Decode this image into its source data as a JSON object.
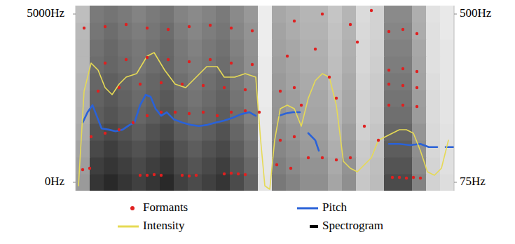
{
  "chart_data": {
    "type": "spectrogram",
    "legend": "bottom",
    "tick_labels": "y",
    "xlim": [
      0,
      27
    ],
    "ylim": [
      -250,
      5250
    ],
    "yticks": [
      {
        "value": 0,
        "label": "0Hz"
      },
      {
        "value": 5000,
        "label": "5000Hz"
      }
    ],
    "y2lim": [
      53.75,
      521.25
    ],
    "y2ticks": [
      {
        "value": 75,
        "label": "75Hz"
      },
      {
        "value": 500,
        "label": "500Hz"
      }
    ],
    "spectrogram": {
      "name": "Spectrogram",
      "color": "#000000",
      "zlim": [
        0,
        100
      ],
      "y_edges": [
        -250,
        250,
        750,
        1250,
        1750,
        2250,
        2750,
        3250,
        3750,
        4250,
        4750,
        5250
      ],
      "cells": [
        [
          45,
          90,
          95,
          90,
          85,
          90,
          95,
          85,
          80,
          85,
          90,
          80,
          70,
          12,
          60,
          55,
          50,
          50,
          40,
          50,
          25,
          30,
          80,
          80,
          55,
          20,
          15
        ],
        [
          43,
          86,
          90,
          86,
          81,
          86,
          90,
          81,
          76,
          81,
          86,
          76,
          67,
          11,
          57,
          52,
          48,
          48,
          38,
          48,
          24,
          29,
          76,
          76,
          52,
          19,
          14
        ],
        [
          41,
          81,
          86,
          81,
          77,
          81,
          86,
          77,
          72,
          77,
          81,
          72,
          63,
          11,
          54,
          50,
          45,
          45,
          36,
          45,
          23,
          27,
          72,
          72,
          50,
          18,
          14
        ],
        [
          38,
          77,
          81,
          77,
          72,
          77,
          81,
          72,
          68,
          72,
          77,
          68,
          60,
          10,
          51,
          47,
          43,
          43,
          34,
          43,
          21,
          26,
          68,
          68,
          47,
          17,
          13
        ],
        [
          36,
          72,
          76,
          72,
          68,
          72,
          76,
          68,
          64,
          68,
          72,
          64,
          56,
          10,
          48,
          44,
          40,
          40,
          32,
          40,
          20,
          24,
          64,
          64,
          44,
          16,
          12
        ],
        [
          35,
          70,
          74,
          70,
          66,
          70,
          74,
          66,
          62,
          66,
          70,
          62,
          55,
          9,
          47,
          43,
          39,
          39,
          31,
          39,
          20,
          23,
          62,
          62,
          43,
          16,
          12
        ],
        [
          34,
          68,
          71,
          68,
          64,
          68,
          71,
          64,
          60,
          64,
          68,
          60,
          53,
          9,
          45,
          41,
          38,
          38,
          30,
          38,
          19,
          23,
          60,
          60,
          41,
          15,
          11
        ],
        [
          32,
          65,
          68,
          65,
          61,
          65,
          68,
          61,
          58,
          61,
          65,
          58,
          50,
          9,
          43,
          40,
          36,
          36,
          29,
          36,
          18,
          22,
          58,
          58,
          40,
          14,
          11
        ],
        [
          32,
          63,
          67,
          63,
          60,
          63,
          67,
          60,
          56,
          60,
          63,
          56,
          49,
          8,
          42,
          39,
          35,
          35,
          28,
          35,
          18,
          21,
          56,
          56,
          39,
          14,
          11
        ],
        [
          31,
          61,
          65,
          61,
          58,
          61,
          65,
          58,
          54,
          58,
          61,
          54,
          48,
          8,
          41,
          37,
          34,
          34,
          27,
          34,
          17,
          20,
          54,
          54,
          37,
          14,
          10
        ],
        [
          29,
          59,
          62,
          59,
          55,
          59,
          62,
          55,
          52,
          55,
          59,
          52,
          46,
          8,
          39,
          36,
          33,
          33,
          26,
          33,
          16,
          20,
          52,
          52,
          36,
          13,
          10
        ]
      ]
    },
    "series": [
      {
        "name": "Formants",
        "type": "scatter",
        "marker": "circle",
        "color": "#e02020",
        "x": [
          0.5,
          1.0,
          4.6,
          5.1,
          5.6,
          6.1,
          7.6,
          8.1,
          8.6,
          10.6,
          11.1,
          11.6,
          12.1,
          22.6,
          23.1,
          23.6,
          24.1,
          24.6,
          1.1,
          2.1,
          3.1,
          4.1,
          5.1,
          6.1,
          7.1,
          8.1,
          9.1,
          10.1,
          11.1,
          12.1,
          13.1,
          14.6,
          15.6,
          16.6,
          17.6,
          18.6,
          19.6,
          22.35,
          23.35,
          24.35,
          1.6,
          3.1,
          4.6,
          6.1,
          7.6,
          9.1,
          10.6,
          12.1,
          14.6,
          15.6,
          22.35,
          23.35,
          24.35,
          2.1,
          3.6,
          5.1,
          6.6,
          8.1,
          9.6,
          11.1,
          12.6,
          22.35,
          23.35,
          24.35,
          15.1,
          17.1,
          0.6,
          2.1,
          3.6,
          5.1,
          6.6,
          8.1,
          9.6,
          11.1,
          12.6,
          22.35,
          23.35,
          24.35,
          15.6,
          17.6,
          19.6,
          21.1,
          16.1,
          18.1,
          20.1,
          20.6,
          21.6,
          18.6,
          14.35,
          15.35
        ],
        "values": [
          375,
          417,
          208,
          208,
          229,
          208,
          208,
          188,
          208,
          250,
          271,
          250,
          229,
          146,
          146,
          125,
          146,
          125,
          1354,
          1458,
          1563,
          1771,
          1979,
          2083,
          2083,
          2042,
          2083,
          1979,
          2083,
          2125,
          2083,
          1250,
          1354,
          729,
          729,
          667,
          729,
          2292,
          2292,
          2250,
          2708,
          2813,
          2917,
          2958,
          2917,
          2875,
          2813,
          2750,
          2708,
          2813,
          2917,
          2875,
          2813,
          3542,
          3646,
          3708,
          3646,
          3583,
          3646,
          3542,
          3500,
          3333,
          3375,
          3292,
          3750,
          3958,
          4583,
          4625,
          4688,
          4583,
          4542,
          4625,
          4667,
          4583,
          4500,
          4479,
          4542,
          4417,
          4792,
          5000,
          4688,
          5104,
          2292,
          3125,
          4167,
          1667,
          1250,
          2500,
          521,
          417
        ]
      },
      {
        "name": "Pitch",
        "type": "line",
        "axis": "y2",
        "color": "#2a62d8",
        "line_style": "solid",
        "x": [
          0.5,
          0.85,
          1.2,
          1.5,
          1.85,
          2.35,
          2.85,
          3.35,
          3.85,
          4.2,
          4.6,
          5.0,
          5.35,
          5.7,
          6.1,
          6.5,
          7.0,
          7.6,
          8.2,
          8.8,
          9.4,
          10.0,
          10.6,
          11.2,
          11.8,
          12.4,
          12.85,
          13.5,
          14.5,
          15.0,
          15.5,
          16.0,
          16.3,
          16.6,
          17.1,
          17.35,
          20,
          22.35,
          23.1,
          23.85,
          24.6,
          25.2,
          25.8,
          26.1,
          26.4,
          27.0
        ],
        "values": [
          226,
          252,
          270,
          243,
          211,
          208,
          204,
          208,
          220,
          226,
          270,
          296,
          291,
          261,
          243,
          252,
          234,
          226,
          220,
          217,
          220,
          226,
          231,
          238,
          247,
          252,
          243,
          null,
          243,
          249,
          252,
          252,
          null,
          199,
          181,
          155,
          null,
          172,
          172,
          169,
          172,
          164,
          164,
          null,
          164,
          164
        ]
      },
      {
        "name": "Intensity",
        "type": "line",
        "color": "#e6da55",
        "line_style": "solid",
        "x": [
          0.2,
          0.6,
          1.1,
          1.6,
          2.1,
          2.6,
          3.1,
          3.6,
          4.35,
          5.1,
          5.6,
          6.35,
          7.1,
          7.85,
          8.6,
          9.35,
          10.1,
          10.6,
          11.35,
          12.1,
          12.85,
          13.2,
          13.5,
          13.85,
          14.2,
          14.6,
          15.1,
          15.6,
          16.1,
          16.6,
          17.1,
          17.6,
          18.1,
          18.6,
          19.1,
          19.6,
          20.1,
          20.6,
          21.1,
          21.6,
          22.1,
          22.6,
          23.1,
          23.6,
          24.1,
          24.6,
          25.1,
          25.6,
          26.1,
          26.6
        ],
        "values": [
          -104,
          2708,
          3542,
          3333,
          2813,
          2604,
          2917,
          3125,
          3229,
          3750,
          3854,
          3333,
          2917,
          2813,
          3125,
          3438,
          3438,
          3125,
          3125,
          3229,
          3125,
          1250,
          -104,
          -208,
          1250,
          2188,
          2292,
          2188,
          1667,
          2500,
          3021,
          3229,
          3125,
          2292,
          625,
          417,
          313,
          521,
          729,
          1250,
          1354,
          1458,
          1563,
          1563,
          1458,
          938,
          313,
          208,
          417,
          1250
        ]
      }
    ]
  }
}
